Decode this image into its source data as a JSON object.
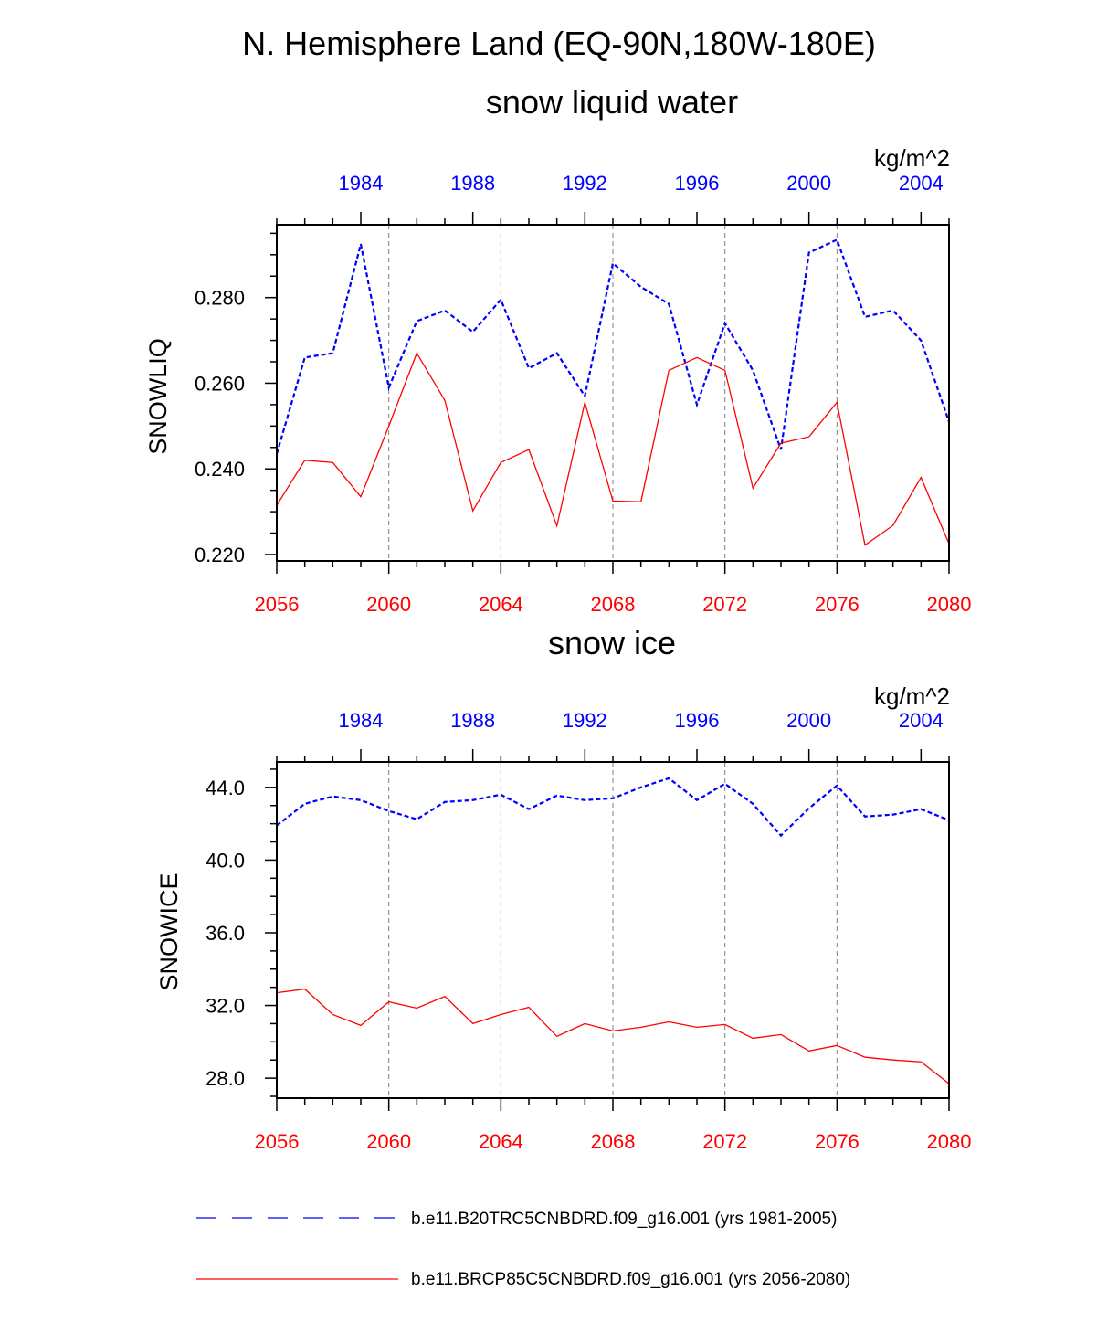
{
  "figure": {
    "title": "N. Hemisphere Land (EQ-90N,180W-180E)"
  },
  "colors": {
    "series1": "#0000ff",
    "series2": "#ff0000",
    "axis": "#000000",
    "grid": "#808080"
  },
  "legend": {
    "entries": [
      {
        "label": "b.e11.B20TRC5CNBDRD.f09_g16.001 (yrs 1981-2005)",
        "style": "dashed",
        "color": "#0000ff"
      },
      {
        "label": "b.e11.BRCP85C5CNBDRD.f09_g16.001 (yrs 2056-2080)",
        "style": "solid",
        "color": "#ff0000"
      }
    ]
  },
  "chart_data": [
    {
      "type": "line",
      "title": "snow liquid water",
      "units": "kg/m^2",
      "ylabel": "SNOWLIQ",
      "ylim": [
        0.2185,
        0.297
      ],
      "yticks": [
        "0.220",
        "0.240",
        "0.260",
        "0.280"
      ],
      "ytick_values": [
        0.22,
        0.24,
        0.26,
        0.28
      ],
      "x_bottom": {
        "range": [
          2056,
          2080
        ],
        "ticks": [
          "2056",
          "2060",
          "2064",
          "2068",
          "2072",
          "2076",
          "2080"
        ]
      },
      "x_top": {
        "range": [
          1981,
          2005
        ],
        "ticks": [
          "1984",
          "1988",
          "1992",
          "1996",
          "2000",
          "2004"
        ]
      },
      "series": [
        {
          "name": "b.e11.B20TRC5CNBDRD.f09_g16.001 (yrs 1981-2005)",
          "color": "#0000ff",
          "style": "dashed",
          "x": [
            1981,
            1982,
            1983,
            1984,
            1985,
            1986,
            1987,
            1988,
            1989,
            1990,
            1991,
            1992,
            1993,
            1994,
            1995,
            1996,
            1997,
            1998,
            1999,
            2000,
            2001,
            2002,
            2003,
            2004,
            2005
          ],
          "values": [
            0.2435,
            0.266,
            0.267,
            0.2925,
            0.259,
            0.2745,
            0.277,
            0.272,
            0.2795,
            0.2635,
            0.267,
            0.257,
            0.288,
            0.2825,
            0.2785,
            0.255,
            0.274,
            0.263,
            0.2445,
            0.2905,
            0.2935,
            0.2755,
            0.277,
            0.27,
            0.251
          ]
        },
        {
          "name": "b.e11.BRCP85C5CNBDRD.f09_g16.001 (yrs 2056-2080)",
          "color": "#ff0000",
          "style": "solid",
          "x": [
            2056,
            2057,
            2058,
            2059,
            2060,
            2061,
            2062,
            2063,
            2064,
            2065,
            2066,
            2067,
            2068,
            2069,
            2070,
            2071,
            2072,
            2073,
            2074,
            2075,
            2076,
            2077,
            2078,
            2079,
            2080
          ],
          "values": [
            0.2315,
            0.242,
            0.2415,
            0.2335,
            0.25,
            0.267,
            0.256,
            0.2302,
            0.2415,
            0.2445,
            0.2267,
            0.2555,
            0.2325,
            0.2323,
            0.263,
            0.266,
            0.263,
            0.2355,
            0.246,
            0.2475,
            0.2555,
            0.2222,
            0.2268,
            0.238,
            0.2225
          ]
        }
      ]
    },
    {
      "type": "line",
      "title": "snow ice",
      "units": "kg/m^2",
      "ylabel": "SNOWICE",
      "ylim": [
        26.9,
        45.4
      ],
      "yticks": [
        "28.0",
        "32.0",
        "36.0",
        "40.0",
        "44.0"
      ],
      "ytick_values": [
        28.0,
        32.0,
        36.0,
        40.0,
        44.0
      ],
      "x_bottom": {
        "range": [
          2056,
          2080
        ],
        "ticks": [
          "2056",
          "2060",
          "2064",
          "2068",
          "2072",
          "2076",
          "2080"
        ]
      },
      "x_top": {
        "range": [
          1981,
          2005
        ],
        "ticks": [
          "1984",
          "1988",
          "1992",
          "1996",
          "2000",
          "2004"
        ]
      },
      "series": [
        {
          "name": "b.e11.B20TRC5CNBDRD.f09_g16.001 (yrs 1981-2005)",
          "color": "#0000ff",
          "style": "dashed",
          "x": [
            1981,
            1982,
            1983,
            1984,
            1985,
            1986,
            1987,
            1988,
            1989,
            1990,
            1991,
            1992,
            1993,
            1994,
            1995,
            1996,
            1997,
            1998,
            1999,
            2000,
            2001,
            2002,
            2003,
            2004,
            2005
          ],
          "values": [
            41.9,
            43.1,
            43.5,
            43.3,
            42.7,
            42.25,
            43.2,
            43.3,
            43.6,
            42.8,
            43.55,
            43.3,
            43.4,
            44.0,
            44.5,
            43.3,
            44.2,
            43.1,
            41.35,
            42.85,
            44.1,
            42.4,
            42.5,
            42.8,
            42.2
          ]
        },
        {
          "name": "b.e11.BRCP85C5CNBDRD.f09_g16.001 (yrs 2056-2080)",
          "color": "#ff0000",
          "style": "solid",
          "x": [
            2056,
            2057,
            2058,
            2059,
            2060,
            2061,
            2062,
            2063,
            2064,
            2065,
            2066,
            2067,
            2068,
            2069,
            2070,
            2071,
            2072,
            2073,
            2074,
            2075,
            2076,
            2077,
            2078,
            2079,
            2080
          ],
          "values": [
            32.7,
            32.9,
            31.5,
            30.9,
            32.2,
            31.85,
            32.5,
            31.0,
            31.5,
            31.9,
            30.3,
            31.0,
            30.6,
            30.8,
            31.1,
            30.8,
            30.95,
            30.2,
            30.4,
            29.5,
            29.8,
            29.15,
            29.0,
            28.9,
            27.7
          ]
        }
      ]
    }
  ]
}
